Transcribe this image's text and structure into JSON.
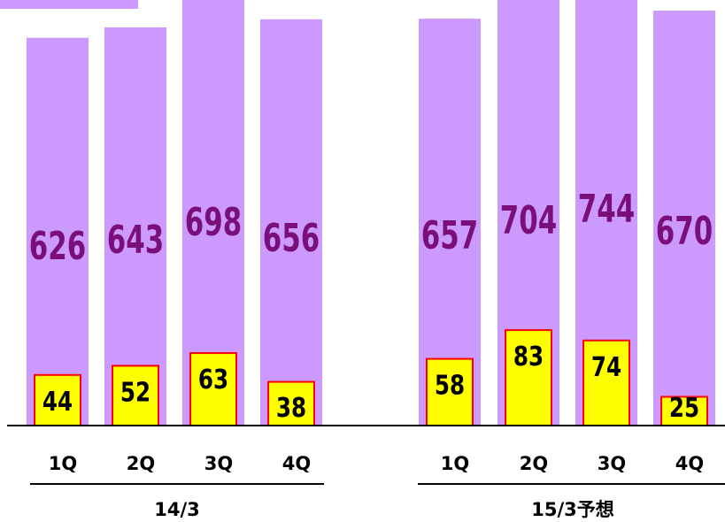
{
  "chart_data": {
    "type": "bar",
    "groups": [
      {
        "label": "14/3",
        "categories": [
          "1Q",
          "2Q",
          "3Q",
          "4Q"
        ]
      },
      {
        "label": "15/3予想",
        "categories": [
          "1Q",
          "2Q",
          "3Q",
          "4Q"
        ]
      }
    ],
    "series": [
      {
        "values": [
          626,
          643,
          698,
          656,
          657,
          704,
          744,
          670
        ],
        "color": "#cc99ff"
      },
      {
        "values": [
          44,
          52,
          63,
          38,
          58,
          83,
          74,
          25
        ],
        "color": "#ffff00",
        "border_color": "#ff0000"
      }
    ],
    "grid": false
  }
}
